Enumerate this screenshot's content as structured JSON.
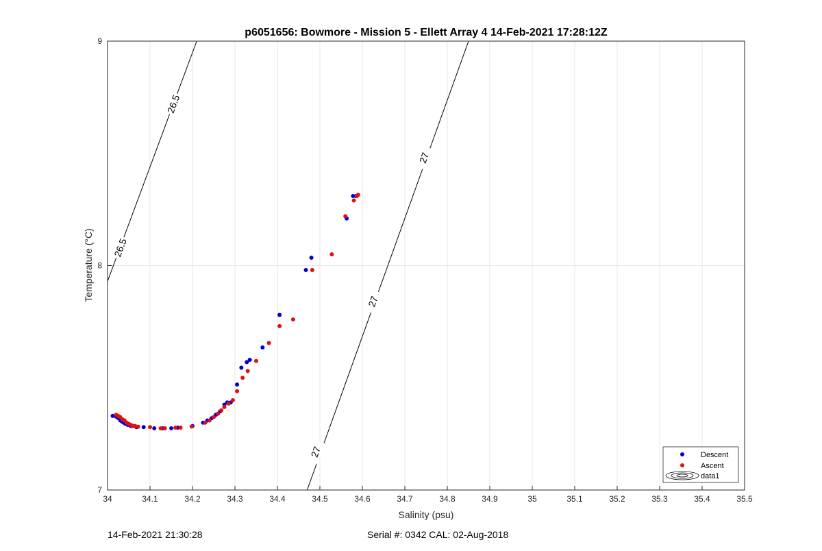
{
  "chart_data": {
    "type": "scatter",
    "title": "p6051656: Bowmore - Mission 5 - Ellett Array 4 14-Feb-2021 17:28:12Z",
    "xlabel": "Salinity (psu)",
    "ylabel": "Temperature (°C)",
    "xlim": [
      34,
      35.5
    ],
    "ylim": [
      7,
      9
    ],
    "x_ticks": [
      "34",
      "34.1",
      "34.2",
      "34.3",
      "34.4",
      "34.5",
      "34.6",
      "34.7",
      "34.8",
      "34.9",
      "35",
      "35.1",
      "35.2",
      "35.3",
      "35.4",
      "35.5"
    ],
    "y_ticks": [
      "7",
      "8",
      "9"
    ],
    "grid": true,
    "legend_position": "bottom-right",
    "legend": [
      "Descent",
      "Ascent",
      "data1"
    ],
    "colors": {
      "descent": "#0000cc",
      "ascent": "#dd1111",
      "contour": "#000000",
      "grid": "#e6e6e6"
    },
    "series": [
      {
        "name": "Descent",
        "points": [
          [
            34.012,
            7.33
          ],
          [
            34.018,
            7.33
          ],
          [
            34.022,
            7.325
          ],
          [
            34.026,
            7.32
          ],
          [
            34.03,
            7.31
          ],
          [
            34.034,
            7.305
          ],
          [
            34.038,
            7.3
          ],
          [
            34.042,
            7.295
          ],
          [
            34.048,
            7.29
          ],
          [
            34.055,
            7.285
          ],
          [
            34.062,
            7.285
          ],
          [
            34.068,
            7.28
          ],
          [
            34.085,
            7.28
          ],
          [
            34.11,
            7.275
          ],
          [
            34.13,
            7.275
          ],
          [
            34.15,
            7.275
          ],
          [
            34.165,
            7.278
          ],
          [
            34.2,
            7.285
          ],
          [
            34.225,
            7.3
          ],
          [
            34.235,
            7.31
          ],
          [
            34.245,
            7.32
          ],
          [
            34.255,
            7.335
          ],
          [
            34.265,
            7.35
          ],
          [
            34.275,
            7.38
          ],
          [
            34.282,
            7.39
          ],
          [
            34.29,
            7.39
          ],
          [
            34.305,
            7.47
          ],
          [
            34.315,
            7.545
          ],
          [
            34.328,
            7.57
          ],
          [
            34.335,
            7.58
          ],
          [
            34.365,
            7.635
          ],
          [
            34.405,
            7.78
          ],
          [
            34.467,
            7.98
          ],
          [
            34.48,
            8.035
          ],
          [
            34.563,
            8.21
          ],
          [
            34.578,
            8.31
          ],
          [
            34.585,
            8.31
          ]
        ]
      },
      {
        "name": "Ascent",
        "points": [
          [
            34.02,
            7.335
          ],
          [
            34.025,
            7.33
          ],
          [
            34.03,
            7.325
          ],
          [
            34.035,
            7.315
          ],
          [
            34.04,
            7.31
          ],
          [
            34.045,
            7.3
          ],
          [
            34.05,
            7.295
          ],
          [
            34.055,
            7.29
          ],
          [
            34.06,
            7.285
          ],
          [
            34.065,
            7.285
          ],
          [
            34.072,
            7.282
          ],
          [
            34.1,
            7.28
          ],
          [
            34.125,
            7.275
          ],
          [
            34.135,
            7.275
          ],
          [
            34.16,
            7.278
          ],
          [
            34.172,
            7.278
          ],
          [
            34.198,
            7.283
          ],
          [
            34.23,
            7.3
          ],
          [
            34.24,
            7.31
          ],
          [
            34.25,
            7.325
          ],
          [
            34.26,
            7.34
          ],
          [
            34.268,
            7.355
          ],
          [
            34.275,
            7.37
          ],
          [
            34.285,
            7.385
          ],
          [
            34.295,
            7.4
          ],
          [
            34.305,
            7.44
          ],
          [
            34.318,
            7.5
          ],
          [
            34.33,
            7.53
          ],
          [
            34.35,
            7.575
          ],
          [
            34.38,
            7.655
          ],
          [
            34.405,
            7.73
          ],
          [
            34.437,
            7.76
          ],
          [
            34.482,
            7.98
          ],
          [
            34.528,
            8.05
          ],
          [
            34.56,
            8.22
          ],
          [
            34.58,
            8.29
          ],
          [
            34.587,
            8.31
          ],
          [
            34.59,
            8.315
          ]
        ]
      }
    ],
    "contours": [
      {
        "label": "26.5",
        "from": [
          34.0,
          7.93
        ],
        "to": [
          34.21,
          9.0
        ],
        "label_positions": [
          [
            34.03,
            8.08
          ],
          [
            34.155,
            8.72
          ]
        ]
      },
      {
        "label": "27",
        "from": [
          34.47,
          7.0
        ],
        "to": [
          34.85,
          9.0
        ],
        "label_positions": [
          [
            34.49,
            7.17
          ],
          [
            34.625,
            7.84
          ],
          [
            34.745,
            8.48
          ]
        ]
      }
    ]
  },
  "footer": {
    "date": "14-Feb-2021 21:30:28",
    "serial": "Serial #: 0342  CAL: 02-Aug-2018"
  }
}
